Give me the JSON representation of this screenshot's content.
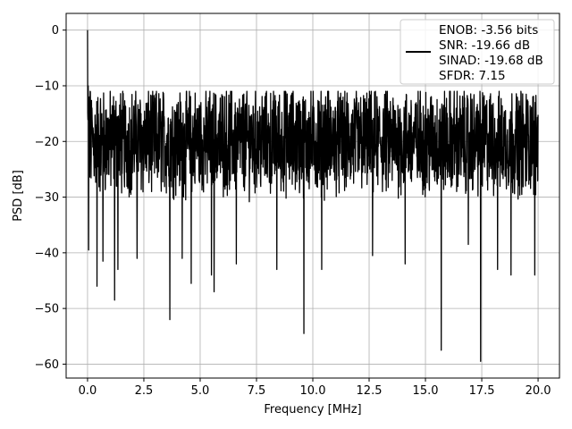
{
  "chart_data": {
    "type": "line",
    "title": "",
    "xlabel": "Frequency [MHz]",
    "ylabel": "PSD [dB]",
    "xlim": [
      -0.95,
      20.95
    ],
    "ylim": [
      -62.5,
      3
    ],
    "xticks": [
      0,
      2.5,
      5,
      7.5,
      10,
      12.5,
      15,
      17.5,
      20
    ],
    "xtick_labels": [
      "0.0",
      "2.5",
      "5.0",
      "7.5",
      "10.0",
      "12.5",
      "15.0",
      "17.5",
      "20.0"
    ],
    "yticks": [
      0,
      -10,
      -20,
      -30,
      -40,
      -50,
      -60
    ],
    "ytick_labels": [
      "0",
      "−10",
      "−20",
      "−30",
      "−40",
      "−50",
      "−60"
    ],
    "grid": true,
    "legend": {
      "placement": "top-right",
      "entries": [
        "ENOB: -3.56 bits",
        "SNR: -19.66 dB",
        "SINAD: -19.68 dB",
        "SFDR: 7.15"
      ]
    },
    "series": [
      {
        "color": "#000000",
        "x_start": 0,
        "x_end": 20,
        "points": 2048,
        "noise_floor_db": -20,
        "peaks": [
          {
            "x": 0.0,
            "y": 0
          },
          {
            "x": 0.03,
            "y": -10
          },
          {
            "x": 0.05,
            "y": -39.5
          },
          {
            "x": 0.12,
            "y": -11
          },
          {
            "x": 0.2,
            "y": -14
          },
          {
            "x": 0.42,
            "y": -46
          },
          {
            "x": 0.68,
            "y": -41.5
          },
          {
            "x": 1.2,
            "y": -48.5
          },
          {
            "x": 1.35,
            "y": -43
          },
          {
            "x": 2.2,
            "y": -41
          },
          {
            "x": 3.65,
            "y": -52
          },
          {
            "x": 4.2,
            "y": -41
          },
          {
            "x": 4.6,
            "y": -45.5
          },
          {
            "x": 5.5,
            "y": -44
          },
          {
            "x": 5.62,
            "y": -47
          },
          {
            "x": 6.6,
            "y": -42
          },
          {
            "x": 8.4,
            "y": -43
          },
          {
            "x": 9.6,
            "y": -54.5
          },
          {
            "x": 10.4,
            "y": -43
          },
          {
            "x": 12.65,
            "y": -40.5
          },
          {
            "x": 14.1,
            "y": -42
          },
          {
            "x": 15.7,
            "y": -57.5
          },
          {
            "x": 16.9,
            "y": -38.5
          },
          {
            "x": 17.45,
            "y": -59.5
          },
          {
            "x": 18.2,
            "y": -43
          },
          {
            "x": 18.8,
            "y": -44
          },
          {
            "x": 19.85,
            "y": -44
          }
        ]
      }
    ]
  }
}
